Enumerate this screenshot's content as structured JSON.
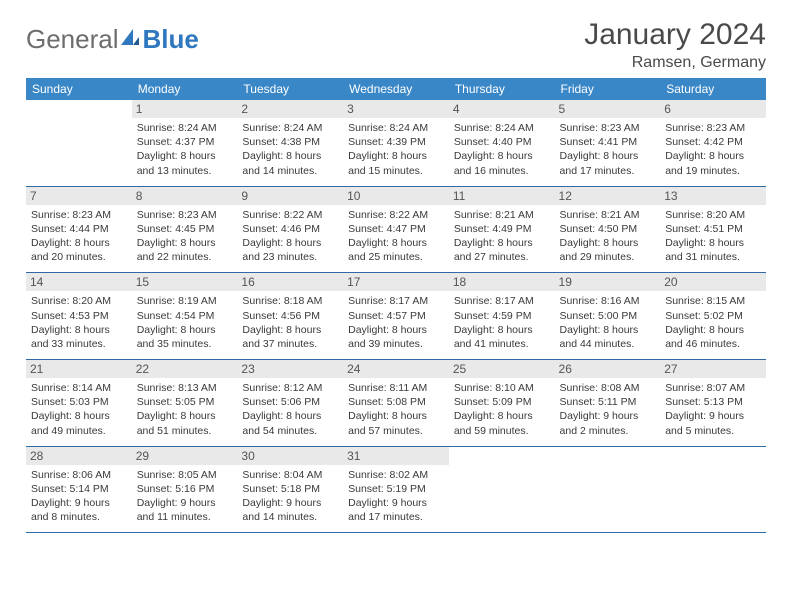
{
  "brand": {
    "general": "General",
    "blue": "Blue"
  },
  "colors": {
    "header_bg": "#3a87c8",
    "header_fg": "#ffffff",
    "row_border": "#2f6aa3",
    "daynum_bg": "#e9e9e9",
    "text": "#3a3a3a",
    "brand_gray": "#6d6d6d",
    "brand_blue": "#2f78bf"
  },
  "title": {
    "month": "January 2024",
    "location": "Ramsen, Germany"
  },
  "weekdays": [
    "Sunday",
    "Monday",
    "Tuesday",
    "Wednesday",
    "Thursday",
    "Friday",
    "Saturday"
  ],
  "weeks": [
    [
      null,
      {
        "n": "1",
        "sr": "8:24 AM",
        "ss": "4:37 PM",
        "dl": "8 hours and 13 minutes."
      },
      {
        "n": "2",
        "sr": "8:24 AM",
        "ss": "4:38 PM",
        "dl": "8 hours and 14 minutes."
      },
      {
        "n": "3",
        "sr": "8:24 AM",
        "ss": "4:39 PM",
        "dl": "8 hours and 15 minutes."
      },
      {
        "n": "4",
        "sr": "8:24 AM",
        "ss": "4:40 PM",
        "dl": "8 hours and 16 minutes."
      },
      {
        "n": "5",
        "sr": "8:23 AM",
        "ss": "4:41 PM",
        "dl": "8 hours and 17 minutes."
      },
      {
        "n": "6",
        "sr": "8:23 AM",
        "ss": "4:42 PM",
        "dl": "8 hours and 19 minutes."
      }
    ],
    [
      {
        "n": "7",
        "sr": "8:23 AM",
        "ss": "4:44 PM",
        "dl": "8 hours and 20 minutes."
      },
      {
        "n": "8",
        "sr": "8:23 AM",
        "ss": "4:45 PM",
        "dl": "8 hours and 22 minutes."
      },
      {
        "n": "9",
        "sr": "8:22 AM",
        "ss": "4:46 PM",
        "dl": "8 hours and 23 minutes."
      },
      {
        "n": "10",
        "sr": "8:22 AM",
        "ss": "4:47 PM",
        "dl": "8 hours and 25 minutes."
      },
      {
        "n": "11",
        "sr": "8:21 AM",
        "ss": "4:49 PM",
        "dl": "8 hours and 27 minutes."
      },
      {
        "n": "12",
        "sr": "8:21 AM",
        "ss": "4:50 PM",
        "dl": "8 hours and 29 minutes."
      },
      {
        "n": "13",
        "sr": "8:20 AM",
        "ss": "4:51 PM",
        "dl": "8 hours and 31 minutes."
      }
    ],
    [
      {
        "n": "14",
        "sr": "8:20 AM",
        "ss": "4:53 PM",
        "dl": "8 hours and 33 minutes."
      },
      {
        "n": "15",
        "sr": "8:19 AM",
        "ss": "4:54 PM",
        "dl": "8 hours and 35 minutes."
      },
      {
        "n": "16",
        "sr": "8:18 AM",
        "ss": "4:56 PM",
        "dl": "8 hours and 37 minutes."
      },
      {
        "n": "17",
        "sr": "8:17 AM",
        "ss": "4:57 PM",
        "dl": "8 hours and 39 minutes."
      },
      {
        "n": "18",
        "sr": "8:17 AM",
        "ss": "4:59 PM",
        "dl": "8 hours and 41 minutes."
      },
      {
        "n": "19",
        "sr": "8:16 AM",
        "ss": "5:00 PM",
        "dl": "8 hours and 44 minutes."
      },
      {
        "n": "20",
        "sr": "8:15 AM",
        "ss": "5:02 PM",
        "dl": "8 hours and 46 minutes."
      }
    ],
    [
      {
        "n": "21",
        "sr": "8:14 AM",
        "ss": "5:03 PM",
        "dl": "8 hours and 49 minutes."
      },
      {
        "n": "22",
        "sr": "8:13 AM",
        "ss": "5:05 PM",
        "dl": "8 hours and 51 minutes."
      },
      {
        "n": "23",
        "sr": "8:12 AM",
        "ss": "5:06 PM",
        "dl": "8 hours and 54 minutes."
      },
      {
        "n": "24",
        "sr": "8:11 AM",
        "ss": "5:08 PM",
        "dl": "8 hours and 57 minutes."
      },
      {
        "n": "25",
        "sr": "8:10 AM",
        "ss": "5:09 PM",
        "dl": "8 hours and 59 minutes."
      },
      {
        "n": "26",
        "sr": "8:08 AM",
        "ss": "5:11 PM",
        "dl": "9 hours and 2 minutes."
      },
      {
        "n": "27",
        "sr": "8:07 AM",
        "ss": "5:13 PM",
        "dl": "9 hours and 5 minutes."
      }
    ],
    [
      {
        "n": "28",
        "sr": "8:06 AM",
        "ss": "5:14 PM",
        "dl": "9 hours and 8 minutes."
      },
      {
        "n": "29",
        "sr": "8:05 AM",
        "ss": "5:16 PM",
        "dl": "9 hours and 11 minutes."
      },
      {
        "n": "30",
        "sr": "8:04 AM",
        "ss": "5:18 PM",
        "dl": "9 hours and 14 minutes."
      },
      {
        "n": "31",
        "sr": "8:02 AM",
        "ss": "5:19 PM",
        "dl": "9 hours and 17 minutes."
      },
      null,
      null,
      null
    ]
  ],
  "labels": {
    "sunrise": "Sunrise:",
    "sunset": "Sunset:",
    "daylight": "Daylight:"
  }
}
